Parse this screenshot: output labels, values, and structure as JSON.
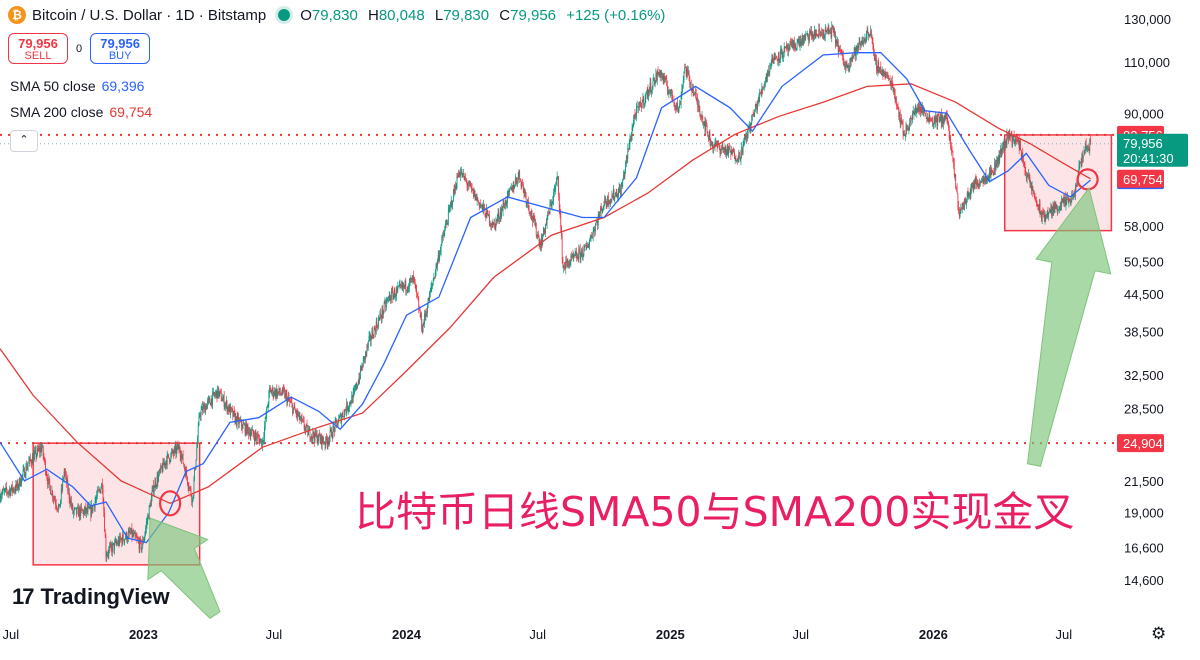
{
  "header": {
    "coin_icon": "bitcoin-icon",
    "coin_glyph": "₿",
    "symbol": "Bitcoin / U.S. Dollar · 1D · Bitstamp",
    "status_icon": "market-open-dot-icon",
    "ohlc": {
      "o_label": "O",
      "o_value": "79,830",
      "h_label": "H",
      "h_value": "80,048",
      "l_label": "L",
      "l_value": "79,830",
      "c_label": "C",
      "c_value": "79,956",
      "change": "+125 (+0.16%)"
    }
  },
  "trade": {
    "sell_price": "79,956",
    "sell_label": "SELL",
    "spread": "0",
    "buy_price": "79,956",
    "buy_label": "BUY"
  },
  "indicators": {
    "sma50": {
      "name": "SMA 50 close",
      "value": "69,396"
    },
    "sma200": {
      "name": "SMA 200 close",
      "value": "69,754"
    }
  },
  "collapse_glyph": "⌃",
  "logo": {
    "mark": "17",
    "text": "TradingView"
  },
  "annotation": "比特币日线SMA50与SMA200实现金叉",
  "settings_icon": "gear-icon",
  "settings_glyph": "⚙",
  "colors": {
    "up": "#089981",
    "down": "#f23645",
    "sma50": "#2962ff",
    "sma200": "#e53935",
    "level": "#e53935",
    "arrow": "#7cc47a",
    "annotation": "#e91e63",
    "box": "rgba(242,54,69,0.13)"
  },
  "chart_data": {
    "type": "candlestick",
    "scale": "log",
    "x_axis": {
      "labels": [
        "Jul",
        "2023",
        "Jul",
        "2024",
        "Jul",
        "2025",
        "Jul",
        "2026",
        "Jul"
      ],
      "dates": [
        "2022-07-01",
        "2023-01-01",
        "2023-07-01",
        "2024-01-01",
        "2024-07-01",
        "2025-01-01",
        "2025-07-01",
        "2026-01-01",
        "2026-07-01"
      ],
      "range": [
        "2022-06-16",
        "2026-09-10"
      ]
    },
    "y_axis": {
      "ticks": [
        14600,
        16600,
        19000,
        21500,
        24904,
        28500,
        32500,
        38500,
        44500,
        50500,
        58000,
        69396,
        69754,
        79956,
        82756,
        90000,
        110000,
        130000
      ],
      "tick_labels": [
        "14,600",
        "16,600",
        "19,000",
        "21,500",
        "24,904",
        "28,500",
        "32,500",
        "38,500",
        "44,500",
        "50,500",
        "58,000",
        "69,396",
        "69,754",
        "79,956",
        "82,756",
        "90,000",
        "110,000",
        "130,000"
      ],
      "range": [
        13000,
        140000
      ]
    },
    "price_labels": {
      "resistance": "82,756",
      "last": "79,956",
      "countdown": "20:41:30",
      "sma200": "69,754",
      "sma50": "69,396",
      "support": "24,904"
    },
    "levels": [
      82756,
      24904
    ],
    "last_price": 79956,
    "series": [
      {
        "kind": "price",
        "points": [
          [
            "2022-06-16",
            20400
          ],
          [
            "2022-07-10",
            21000
          ],
          [
            "2022-07-25",
            23000
          ],
          [
            "2022-08-13",
            24500
          ],
          [
            "2022-08-22",
            21300
          ],
          [
            "2022-09-06",
            19200
          ],
          [
            "2022-09-13",
            22300
          ],
          [
            "2022-09-25",
            19000
          ],
          [
            "2022-10-20",
            19100
          ],
          [
            "2022-11-05",
            21300
          ],
          [
            "2022-11-10",
            16200
          ],
          [
            "2022-12-01",
            17100
          ],
          [
            "2022-12-15",
            17500
          ],
          [
            "2022-12-30",
            16600
          ],
          [
            "2023-01-15",
            21000
          ],
          [
            "2023-02-01",
            23300
          ],
          [
            "2023-02-20",
            24500
          ],
          [
            "2023-03-10",
            20000
          ],
          [
            "2023-03-20",
            28000
          ],
          [
            "2023-04-14",
            30400
          ],
          [
            "2023-05-10",
            27200
          ],
          [
            "2023-06-15",
            25000
          ],
          [
            "2023-06-25",
            30500
          ],
          [
            "2023-07-15",
            30200
          ],
          [
            "2023-08-17",
            26000
          ],
          [
            "2023-09-11",
            25000
          ],
          [
            "2023-10-20",
            30000
          ],
          [
            "2023-11-10",
            37000
          ],
          [
            "2023-12-08",
            44000
          ],
          [
            "2024-01-11",
            47000
          ],
          [
            "2024-01-23",
            39000
          ],
          [
            "2024-02-15",
            52000
          ],
          [
            "2024-03-14",
            72000
          ],
          [
            "2024-05-01",
            58000
          ],
          [
            "2024-06-05",
            71000
          ],
          [
            "2024-07-05",
            54000
          ],
          [
            "2024-07-29",
            70000
          ],
          [
            "2024-08-05",
            49500
          ],
          [
            "2024-09-06",
            53000
          ],
          [
            "2024-10-01",
            63500
          ],
          [
            "2024-10-25",
            67000
          ],
          [
            "2024-11-12",
            89000
          ],
          [
            "2024-12-17",
            106000
          ],
          [
            "2025-01-13",
            91000
          ],
          [
            "2025-01-21",
            108000
          ],
          [
            "2025-02-27",
            80000
          ],
          [
            "2025-04-07",
            76000
          ],
          [
            "2025-05-22",
            111000
          ],
          [
            "2025-07-14",
            122000
          ],
          [
            "2025-08-14",
            124000
          ],
          [
            "2025-09-01",
            108000
          ],
          [
            "2025-10-06",
            125000
          ],
          [
            "2025-10-11",
            110000
          ],
          [
            "2025-11-05",
            101000
          ],
          [
            "2025-11-21",
            83000
          ],
          [
            "2025-12-10",
            92500
          ],
          [
            "2025-12-31",
            87500
          ],
          [
            "2026-01-20",
            88500
          ],
          [
            "2026-02-06",
            61000
          ],
          [
            "2026-02-25",
            68000
          ],
          [
            "2026-03-25",
            72000
          ],
          [
            "2026-04-15",
            83000
          ],
          [
            "2026-04-30",
            80000
          ],
          [
            "2026-05-10",
            71000
          ],
          [
            "2026-06-01",
            60000
          ],
          [
            "2026-06-25",
            63000
          ],
          [
            "2026-07-14",
            64500
          ],
          [
            "2026-07-28",
            78000
          ],
          [
            "2026-08-07",
            79956
          ]
        ]
      },
      {
        "name": "SMA 50 close",
        "points": [
          [
            "2022-06-16",
            25000
          ],
          [
            "2022-07-20",
            21500
          ],
          [
            "2022-08-20",
            22500
          ],
          [
            "2022-09-25",
            21000
          ],
          [
            "2022-10-20",
            19500
          ],
          [
            "2022-11-10",
            19800
          ],
          [
            "2022-12-10",
            17200
          ],
          [
            "2023-01-05",
            16900
          ],
          [
            "2023-02-05",
            19000
          ],
          [
            "2023-03-01",
            22300
          ],
          [
            "2023-03-25",
            23000
          ],
          [
            "2023-05-01",
            27000
          ],
          [
            "2023-06-10",
            27500
          ],
          [
            "2023-07-25",
            29800
          ],
          [
            "2023-09-01",
            28200
          ],
          [
            "2023-10-01",
            26300
          ],
          [
            "2023-11-01",
            29000
          ],
          [
            "2023-12-01",
            34000
          ],
          [
            "2024-01-01",
            41000
          ],
          [
            "2024-02-15",
            44000
          ],
          [
            "2024-03-30",
            60000
          ],
          [
            "2024-05-20",
            65000
          ],
          [
            "2024-07-20",
            62000
          ],
          [
            "2024-09-01",
            60000
          ],
          [
            "2024-10-01",
            60000
          ],
          [
            "2024-11-15",
            70000
          ],
          [
            "2024-12-20",
            92000
          ],
          [
            "2025-02-05",
            100000
          ],
          [
            "2025-03-25",
            92000
          ],
          [
            "2025-04-25",
            84000
          ],
          [
            "2025-06-05",
            100000
          ],
          [
            "2025-08-01",
            113000
          ],
          [
            "2025-09-15",
            114000
          ],
          [
            "2025-10-20",
            114000
          ],
          [
            "2025-11-25",
            103000
          ],
          [
            "2025-12-20",
            91000
          ],
          [
            "2026-01-20",
            90000
          ],
          [
            "2026-02-20",
            78000
          ],
          [
            "2026-03-20",
            69000
          ],
          [
            "2026-04-15",
            72000
          ],
          [
            "2026-05-10",
            77000
          ],
          [
            "2026-06-10",
            68000
          ],
          [
            "2026-07-10",
            65000
          ],
          [
            "2026-08-07",
            69396
          ]
        ]
      },
      {
        "name": "SMA 200 close",
        "points": [
          [
            "2022-06-16",
            36000
          ],
          [
            "2022-08-01",
            30000
          ],
          [
            "2022-10-01",
            25000
          ],
          [
            "2022-12-01",
            21500
          ],
          [
            "2023-02-07",
            19700
          ],
          [
            "2023-04-01",
            21000
          ],
          [
            "2023-06-15",
            24500
          ],
          [
            "2023-09-01",
            26500
          ],
          [
            "2023-11-01",
            28000
          ],
          [
            "2024-01-01",
            33000
          ],
          [
            "2024-03-01",
            39000
          ],
          [
            "2024-05-01",
            47500
          ],
          [
            "2024-07-20",
            56000
          ],
          [
            "2024-10-01",
            60000
          ],
          [
            "2024-12-01",
            66000
          ],
          [
            "2025-02-01",
            75000
          ],
          [
            "2025-04-01",
            83000
          ],
          [
            "2025-06-01",
            89000
          ],
          [
            "2025-08-01",
            94000
          ],
          [
            "2025-10-01",
            100000
          ],
          [
            "2025-12-01",
            101000
          ],
          [
            "2026-02-01",
            94000
          ],
          [
            "2026-04-01",
            85000
          ],
          [
            "2026-05-15",
            80000
          ],
          [
            "2026-07-01",
            74000
          ],
          [
            "2026-08-07",
            69754
          ]
        ]
      }
    ],
    "highlight_boxes": [
      {
        "from": "2022-08-01",
        "to": "2023-03-20",
        "low": 15500,
        "high": 24904
      },
      {
        "from": "2026-04-10",
        "to": "2026-09-05",
        "low": 57000,
        "high": 82756
      }
    ],
    "cross_markers": [
      [
        "2023-02-07",
        19700
      ],
      [
        "2026-08-03",
        69600
      ]
    ]
  }
}
